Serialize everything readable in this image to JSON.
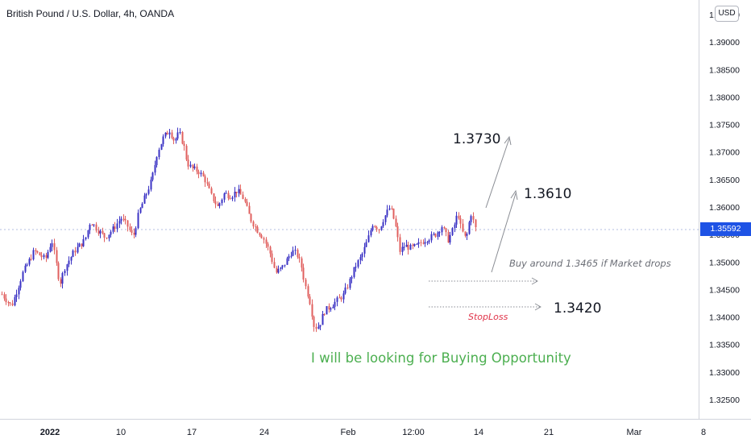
{
  "header": {
    "symbol_title": "British Pound / U.S. Dollar, 4h, OANDA",
    "currency": "USD"
  },
  "last_price": "1.35592",
  "colors": {
    "up": "#3b33c4",
    "down": "#e0605f",
    "last_price_bg": "#1e53e5",
    "annotation_green": "#4caf50",
    "stoploss_red": "#e0344a"
  },
  "annotations": {
    "target_high": "1.3730",
    "target_mid": "1.3610",
    "buy_note": "Buy around 1.3465 if Market drops",
    "stop_level": "1.3420",
    "stop_label": "StopLoss",
    "headline": "I will be looking for Buying Opportunity"
  },
  "chart_data": {
    "type": "candlestick",
    "title": "British Pound / U.S. Dollar, 4h, OANDA",
    "y_ticks": [
      "1.39500",
      "1.39000",
      "1.38500",
      "1.38000",
      "1.37500",
      "1.37000",
      "1.36500",
      "1.36000",
      "1.35500",
      "1.35000",
      "1.34500",
      "1.34000",
      "1.33500",
      "1.33000",
      "1.32500"
    ],
    "x_ticks": [
      "2022",
      "10",
      "17",
      "24",
      "Feb",
      "12:00",
      "14",
      "21",
      "Mar",
      "8"
    ],
    "ylim": [
      1.3215,
      1.3965
    ],
    "grid": false,
    "close_path": [
      [
        0,
        1.3445
      ],
      [
        14,
        1.342
      ],
      [
        28,
        1.348
      ],
      [
        42,
        1.352
      ],
      [
        56,
        1.3505
      ],
      [
        64,
        1.354
      ],
      [
        74,
        1.346
      ],
      [
        80,
        1.349
      ],
      [
        92,
        1.352
      ],
      [
        105,
        1.354
      ],
      [
        112,
        1.3575
      ],
      [
        120,
        1.356
      ],
      [
        130,
        1.3545
      ],
      [
        140,
        1.356
      ],
      [
        150,
        1.358
      ],
      [
        158,
        1.3565
      ],
      [
        165,
        1.3545
      ],
      [
        172,
        1.359
      ],
      [
        180,
        1.362
      ],
      [
        188,
        1.365
      ],
      [
        195,
        1.37
      ],
      [
        202,
        1.3725
      ],
      [
        210,
        1.374
      ],
      [
        216,
        1.372
      ],
      [
        222,
        1.3735
      ],
      [
        228,
        1.371
      ],
      [
        232,
        1.368
      ],
      [
        238,
        1.367
      ],
      [
        246,
        1.3665
      ],
      [
        254,
        1.365
      ],
      [
        262,
        1.362
      ],
      [
        270,
        1.36
      ],
      [
        278,
        1.3625
      ],
      [
        286,
        1.362
      ],
      [
        294,
        1.363
      ],
      [
        302,
        1.3615
      ],
      [
        310,
        1.358
      ],
      [
        318,
        1.356
      ],
      [
        326,
        1.3545
      ],
      [
        334,
        1.352
      ],
      [
        342,
        1.348
      ],
      [
        350,
        1.349
      ],
      [
        356,
        1.3505
      ],
      [
        362,
        1.352
      ],
      [
        368,
        1.3515
      ],
      [
        374,
        1.349
      ],
      [
        378,
        1.346
      ],
      [
        384,
        1.343
      ],
      [
        390,
        1.338
      ],
      [
        396,
        1.3385
      ],
      [
        402,
        1.341
      ],
      [
        410,
        1.342
      ],
      [
        418,
        1.343
      ],
      [
        426,
        1.344
      ],
      [
        432,
        1.346
      ],
      [
        440,
        1.349
      ],
      [
        448,
        1.351
      ],
      [
        456,
        1.354
      ],
      [
        462,
        1.357
      ],
      [
        470,
        1.356
      ],
      [
        476,
        1.358
      ],
      [
        484,
        1.36
      ],
      [
        490,
        1.357
      ],
      [
        496,
        1.352
      ],
      [
        502,
        1.353
      ],
      [
        510,
        1.3525
      ],
      [
        518,
        1.353
      ],
      [
        526,
        1.354
      ],
      [
        534,
        1.3545
      ],
      [
        540,
        1.355
      ],
      [
        548,
        1.3565
      ],
      [
        556,
        1.354
      ],
      [
        562,
        1.356
      ],
      [
        568,
        1.359
      ],
      [
        572,
        1.356
      ],
      [
        578,
        1.354
      ],
      [
        584,
        1.359
      ],
      [
        590,
        1.3559
      ]
    ],
    "annotations": [
      {
        "label": "1.3730",
        "type": "target"
      },
      {
        "label": "1.3610",
        "type": "target"
      },
      {
        "label": "Buy around 1.3465 if Market drops",
        "type": "note",
        "level": 1.3465
      },
      {
        "label": "1.3420",
        "type": "stop_level",
        "level": 1.342
      },
      {
        "label": "StopLoss",
        "type": "stop_label"
      },
      {
        "label": "I will be looking for Buying Opportunity",
        "type": "headline"
      }
    ]
  }
}
